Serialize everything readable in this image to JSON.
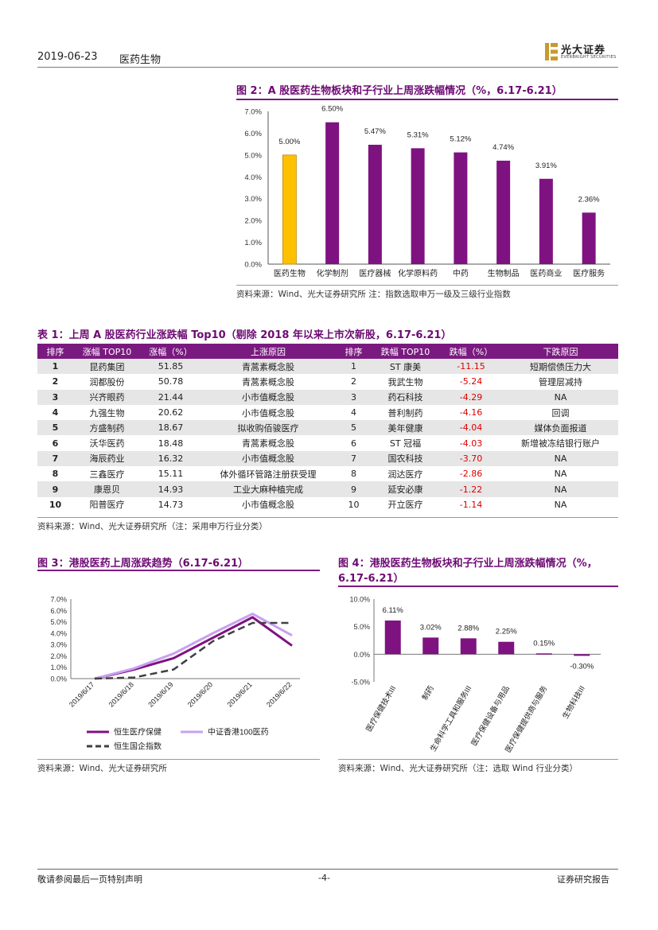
{
  "header": {
    "date": "2019-06-23",
    "sector": "医药生物",
    "logo_text": "光大证券",
    "logo_sub": "EVERBRIGHT SECURITIES"
  },
  "fig2": {
    "title": "图 2：A 股医药生物板块和子行业上周涨跌幅情况（%，6.17-6.21）",
    "source": "资料来源：Wind、光大证券研究所    注：指数选取申万一级及三级行业指数",
    "chart_data": {
      "type": "bar",
      "categories": [
        "医药生物",
        "化学制剂",
        "医疗器械",
        "化学原料药",
        "中药",
        "生物制品",
        "医药商业",
        "医疗服务"
      ],
      "values": [
        5.0,
        6.5,
        5.47,
        5.31,
        5.12,
        4.74,
        3.91,
        2.36
      ],
      "data_labels": [
        "5.00%",
        "6.50%",
        "5.47%",
        "5.31%",
        "5.12%",
        "4.74%",
        "3.91%",
        "2.36%"
      ],
      "yticks": [
        "0.0%",
        "1.0%",
        "2.0%",
        "3.0%",
        "4.0%",
        "5.0%",
        "6.0%",
        "7.0%"
      ],
      "ylim": [
        0,
        7
      ],
      "colors": {
        "highlight": "#FFC000",
        "highlight_border": "#c08a00",
        "bar": "#7F1281"
      }
    }
  },
  "table1": {
    "title": "表 1：上周 A 股医药行业涨跌幅 Top10（剔除 2018 年以来上市次新股，6.17-6.21）",
    "headers": [
      "排序",
      "涨幅 TOP10",
      "涨幅（%）",
      "上涨原因",
      "排序",
      "跌幅 TOP10",
      "跌幅（%）",
      "下跌原因"
    ],
    "rows": [
      [
        "1",
        "昆药集团",
        "51.85",
        "青蒿素概念股",
        "1",
        "ST 康美",
        "-11.15",
        "短期偿债压力大"
      ],
      [
        "2",
        "润都股份",
        "50.78",
        "青蒿素概念股",
        "2",
        "我武生物",
        "-5.24",
        "管理层减持"
      ],
      [
        "3",
        "兴齐眼药",
        "21.44",
        "小市值概念股",
        "3",
        "药石科技",
        "-4.29",
        "NA"
      ],
      [
        "4",
        "九强生物",
        "20.62",
        "小市值概念股",
        "4",
        "普利制药",
        "-4.16",
        "回调"
      ],
      [
        "5",
        "方盛制药",
        "18.67",
        "拟收购佰骏医疗",
        "5",
        "美年健康",
        "-4.04",
        "媒体负面报道"
      ],
      [
        "6",
        "沃华医药",
        "18.48",
        "青蒿素概念股",
        "6",
        "ST 冠福",
        "-4.03",
        "新增被冻结银行账户"
      ],
      [
        "7",
        "海辰药业",
        "16.32",
        "小市值概念股",
        "7",
        "国农科技",
        "-3.70",
        "NA"
      ],
      [
        "8",
        "三鑫医疗",
        "15.11",
        "体外循环管路注册获受理",
        "8",
        "润达医疗",
        "-2.86",
        "NA"
      ],
      [
        "9",
        "康恩贝",
        "14.93",
        "工业大麻种植完成",
        "9",
        "延安必康",
        "-1.22",
        "NA"
      ],
      [
        "10",
        "阳普医疗",
        "14.73",
        "小市值概念股",
        "10",
        "开立医疗",
        "-1.14",
        "NA"
      ]
    ],
    "source": "资料来源：Wind、光大证券研究所（注：采用申万行业分类）"
  },
  "fig3": {
    "title": "图 3：港股医药上周涨跌趋势（6.17-6.21）",
    "source": "资料来源：Wind、光大证券研究所",
    "chart_data": {
      "type": "line",
      "x": [
        "2019/6/17",
        "2019/6/18",
        "2019/6/19",
        "2019/6/20",
        "2019/6/21",
        "2019/6/22"
      ],
      "series": [
        {
          "name": "恒生医疗保健",
          "values": [
            0.0,
            0.8,
            1.8,
            3.6,
            5.4,
            2.9
          ],
          "color": "#7F1281",
          "style": "solid"
        },
        {
          "name": "中证香港100医药",
          "values": [
            0.0,
            0.9,
            2.2,
            4.0,
            5.7,
            3.8
          ],
          "color": "#C9A0F0",
          "style": "solid"
        },
        {
          "name": "恒生国企指数",
          "values": [
            0.0,
            0.1,
            0.8,
            3.3,
            4.9,
            4.9
          ],
          "color": "#404040",
          "style": "dashed"
        }
      ],
      "yticks": [
        "0.0%",
        "1.0%",
        "2.0%",
        "3.0%",
        "4.0%",
        "5.0%",
        "6.0%",
        "7.0%"
      ],
      "ylim": [
        0,
        7
      ]
    }
  },
  "fig4": {
    "title_line1": "图 4：港股医药生物板块和子行业上周涨跌幅情况（%，",
    "title_line2": "6.17-6.21）",
    "source": "资料来源：Wind、光大证券研究所（注：选取 Wind 行业分类）",
    "chart_data": {
      "type": "bar",
      "categories": [
        "医疗保健技术III",
        "制药",
        "生命科学工具和服务III",
        "医疗保健设备与用品",
        "医疗保健提供商与服务",
        "生物科技III"
      ],
      "values": [
        6.11,
        3.02,
        2.88,
        2.25,
        0.15,
        -0.3
      ],
      "data_labels": [
        "6.11%",
        "3.02%",
        "2.88%",
        "2.25%",
        "0.15%",
        "-0.30%"
      ],
      "yticks": [
        "-5.0%",
        "0.0%",
        "5.0%",
        "10.0%"
      ],
      "ylim": [
        -5,
        10
      ],
      "colors": {
        "bar": "#7F1281"
      }
    }
  },
  "footer": {
    "left": "敬请参阅最后一页特别声明",
    "center": "-4-",
    "right": "证券研究报告"
  }
}
